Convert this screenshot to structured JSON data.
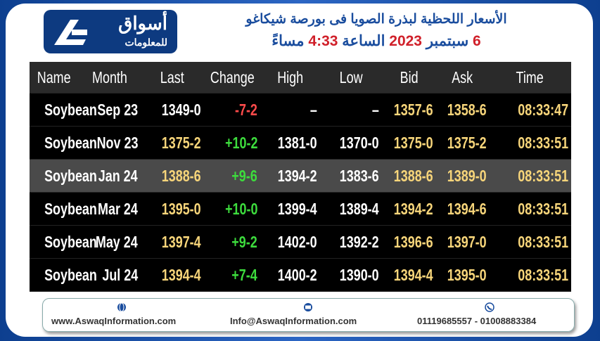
{
  "header": {
    "logo_ar": "أسواق",
    "logo_sub": "للمعلومات",
    "title": "الأسعار اللحظية لبذرة الصويا فى بورصة شيكاغو",
    "subtitle": [
      "6",
      "سبتمبر",
      "2023",
      "الساعة",
      "4:33",
      "مساءً"
    ]
  },
  "table": {
    "columns": [
      "Name",
      "Month",
      "Last",
      "Change",
      "High",
      "Low",
      "Bid",
      "Ask",
      "Time"
    ],
    "rows": [
      [
        "Soybean",
        "Sep 23",
        "1349-0",
        "-7-2",
        "–",
        "–",
        "1357-6",
        "1358-6",
        "08:33:47"
      ],
      [
        "Soybean",
        "Nov 23",
        "1375-2",
        "+10-2",
        "1381-0",
        "1370-0",
        "1375-0",
        "1375-2",
        "08:33:51"
      ],
      [
        "Soybean",
        "Jan 24",
        "1388-6",
        "+9-6",
        "1394-2",
        "1383-6",
        "1388-6",
        "1389-0",
        "08:33:51"
      ],
      [
        "Soybean",
        "Mar 24",
        "1395-0",
        "+10-0",
        "1399-4",
        "1389-4",
        "1394-2",
        "1394-6",
        "08:33:51"
      ],
      [
        "Soybean",
        "May 24",
        "1397-4",
        "+9-2",
        "1402-0",
        "1392-2",
        "1396-6",
        "1397-0",
        "08:33:51"
      ],
      [
        "Soybean",
        "Jul 24",
        "1394-4",
        "+7-4",
        "1400-2",
        "1390-0",
        "1394-4",
        "1395-0",
        "08:33:51"
      ]
    ]
  },
  "footer": {
    "website": "www.AswaqInformation.com",
    "email": "Info@AswaqInformation.com",
    "phones": "01119685557 - 01008883384"
  }
}
